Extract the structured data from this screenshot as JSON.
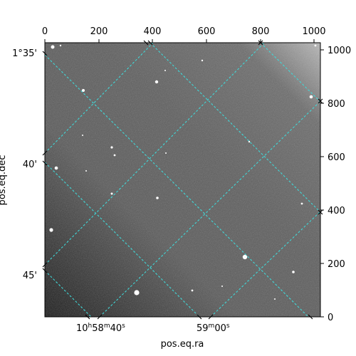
{
  "image": {
    "description_free": true,
    "grid_color": "#40d8d8",
    "frame_color": "#000000",
    "background_color": "#ffffff"
  },
  "pixel_axes": {
    "top_ticks": [
      "0",
      "200",
      "400",
      "600",
      "800",
      "1000"
    ],
    "right_ticks": [
      "1000",
      "800",
      "600",
      "400",
      "200",
      "0"
    ]
  },
  "world_axes": {
    "dec_ticks": [
      "1°35'",
      "40'",
      "45'"
    ],
    "ra_ticks": [
      {
        "h": "10",
        "m": "58",
        "s": "40"
      },
      {
        "m": "59",
        "s": "00"
      }
    ],
    "xlabel": "pos.eq.ra",
    "ylabel": "pos.eq.dec"
  }
}
